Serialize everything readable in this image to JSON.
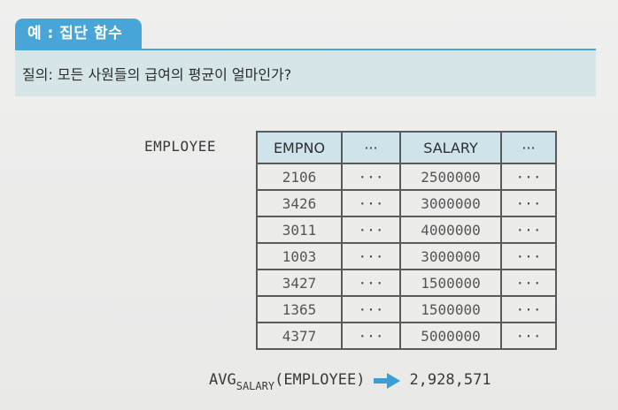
{
  "header": {
    "badge": "예 : 집단 함수"
  },
  "query": {
    "text": "질의: 모든 사원들의 급여의 평균이 얼마인가?"
  },
  "table": {
    "name": "EMPLOYEE",
    "columns": [
      "EMPNO",
      "···",
      "SALARY",
      "···"
    ],
    "rows": [
      [
        "2106",
        "···",
        "2500000",
        "···"
      ],
      [
        "3426",
        "···",
        "3000000",
        "···"
      ],
      [
        "3011",
        "···",
        "4000000",
        "···"
      ],
      [
        "1003",
        "···",
        "3000000",
        "···"
      ],
      [
        "3427",
        "···",
        "1500000",
        "···"
      ],
      [
        "1365",
        "···",
        "1500000",
        "···"
      ],
      [
        "4377",
        "···",
        "5000000",
        "···"
      ]
    ]
  },
  "result": {
    "func": "AVG",
    "subscript": "SALARY",
    "argument": "(EMPLOYEE)",
    "value": "2,928,571"
  },
  "colors": {
    "accent": "#48a5d8",
    "query_bg": "#d6e6e8",
    "header_cell_bg": "#cfe3ea",
    "arrow": "#3b9fd6"
  }
}
